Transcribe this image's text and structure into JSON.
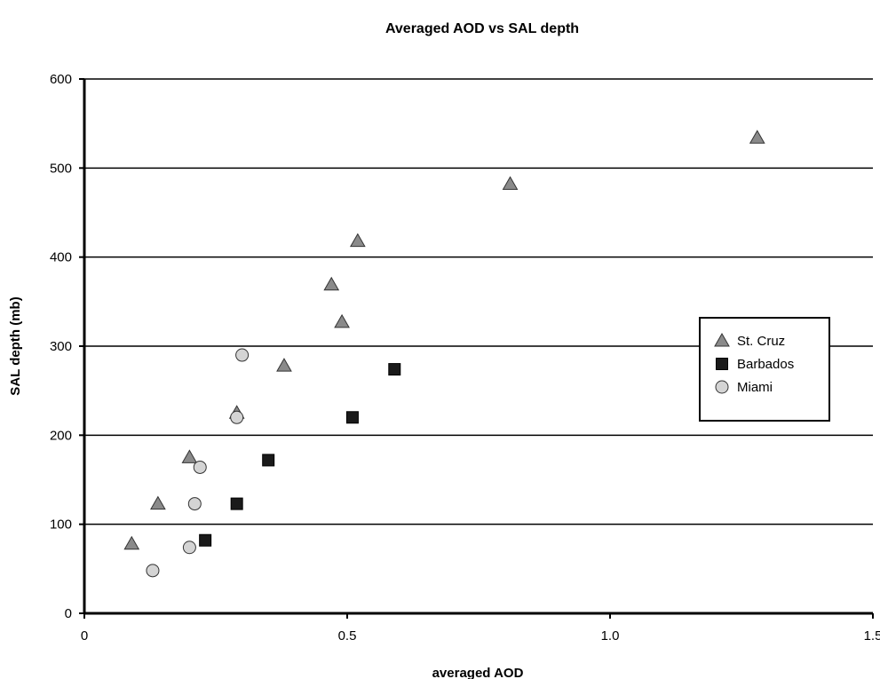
{
  "chart_data": {
    "type": "scatter",
    "title": "Averaged AOD vs SAL depth",
    "xlabel": "averaged AOD",
    "ylabel": "SAL depth (mb)",
    "xlim": [
      0,
      1.5
    ],
    "ylim": [
      0,
      600
    ],
    "x_ticks": [
      0,
      0.5,
      1.0,
      1.5
    ],
    "x_tick_labels": [
      "0",
      "0.5",
      "1.0",
      "1.5"
    ],
    "y_ticks": [
      0,
      100,
      200,
      300,
      400,
      500,
      600
    ],
    "y_tick_labels": [
      "0",
      "100",
      "200",
      "300",
      "400",
      "500",
      "600"
    ],
    "grid": "horizontal",
    "legend_position": "right",
    "series": [
      {
        "name": "St. Cruz",
        "marker": "triangle",
        "color": "#8a8a8a",
        "points": [
          [
            0.09,
            78
          ],
          [
            0.14,
            123
          ],
          [
            0.2,
            175
          ],
          [
            0.29,
            225
          ],
          [
            0.38,
            278
          ],
          [
            0.47,
            369
          ],
          [
            0.49,
            327
          ],
          [
            0.52,
            418
          ],
          [
            0.81,
            482
          ],
          [
            1.28,
            534
          ]
        ]
      },
      {
        "name": "Barbados",
        "marker": "square",
        "color": "#1a1a1a",
        "points": [
          [
            0.23,
            82
          ],
          [
            0.29,
            123
          ],
          [
            0.35,
            172
          ],
          [
            0.51,
            220
          ],
          [
            0.59,
            274
          ]
        ]
      },
      {
        "name": "Miami",
        "marker": "circle",
        "color": "#d4d4d4",
        "points": [
          [
            0.13,
            48
          ],
          [
            0.2,
            74
          ],
          [
            0.21,
            123
          ],
          [
            0.22,
            164
          ],
          [
            0.29,
            220
          ],
          [
            0.3,
            290
          ]
        ]
      }
    ]
  }
}
